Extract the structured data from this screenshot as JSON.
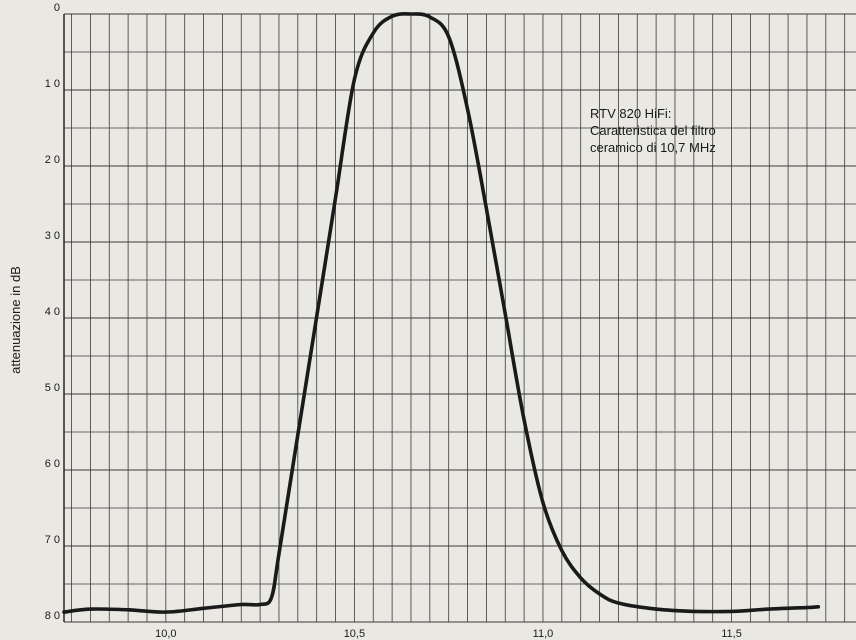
{
  "chart_data": {
    "type": "line",
    "title": [
      "RTV 820 HiFi:",
      "Caratteristica del filtro",
      "ceramico di 10,7 MHz"
    ],
    "xlabel": "",
    "ylabel": "attenuazione in dB",
    "x_ticks": [
      {
        "value": 10.0,
        "label": "10,0"
      },
      {
        "value": 10.5,
        "label": "10,5"
      },
      {
        "value": 11.0,
        "label": "11,0"
      },
      {
        "value": 11.5,
        "label": "11,5"
      }
    ],
    "y_ticks": [
      {
        "value": 0,
        "label": "0"
      },
      {
        "value": 10,
        "label": "1 0"
      },
      {
        "value": 20,
        "label": "2 0"
      },
      {
        "value": 30,
        "label": "3 0"
      },
      {
        "value": 40,
        "label": "4 0"
      },
      {
        "value": 50,
        "label": "5 0"
      },
      {
        "value": 60,
        "label": "6 0"
      },
      {
        "value": 70,
        "label": "7 0"
      },
      {
        "value": 80,
        "label": "8 0"
      }
    ],
    "xlim": [
      9.73,
      11.83
    ],
    "ylim": [
      0,
      80
    ],
    "y_inverted": true,
    "grid": true,
    "grid_minor_x": 0.05,
    "grid_minor_y": 5,
    "series": [
      {
        "color": "#1a1a1a",
        "points": [
          [
            9.73,
            78.7
          ],
          [
            9.8,
            78.3
          ],
          [
            9.9,
            78.4
          ],
          [
            10.0,
            78.7
          ],
          [
            10.1,
            78.2
          ],
          [
            10.2,
            77.7
          ],
          [
            10.25,
            77.7
          ],
          [
            10.28,
            76.8
          ],
          [
            10.3,
            71.0
          ],
          [
            10.35,
            55.4
          ],
          [
            10.4,
            39.8
          ],
          [
            10.45,
            24.2
          ],
          [
            10.5,
            8.6
          ],
          [
            10.55,
            2.5
          ],
          [
            10.6,
            0.3
          ],
          [
            10.65,
            0.0
          ],
          [
            10.7,
            0.4
          ],
          [
            10.75,
            3.0
          ],
          [
            10.8,
            12.5
          ],
          [
            10.85,
            25.6
          ],
          [
            10.9,
            39.5
          ],
          [
            10.95,
            53.4
          ],
          [
            11.0,
            64.3
          ],
          [
            11.05,
            70.6
          ],
          [
            11.1,
            74.2
          ],
          [
            11.15,
            76.3
          ],
          [
            11.2,
            77.5
          ],
          [
            11.3,
            78.3
          ],
          [
            11.4,
            78.6
          ],
          [
            11.5,
            78.6
          ],
          [
            11.6,
            78.3
          ],
          [
            11.7,
            78.1
          ],
          [
            11.73,
            78.0
          ]
        ]
      }
    ]
  }
}
